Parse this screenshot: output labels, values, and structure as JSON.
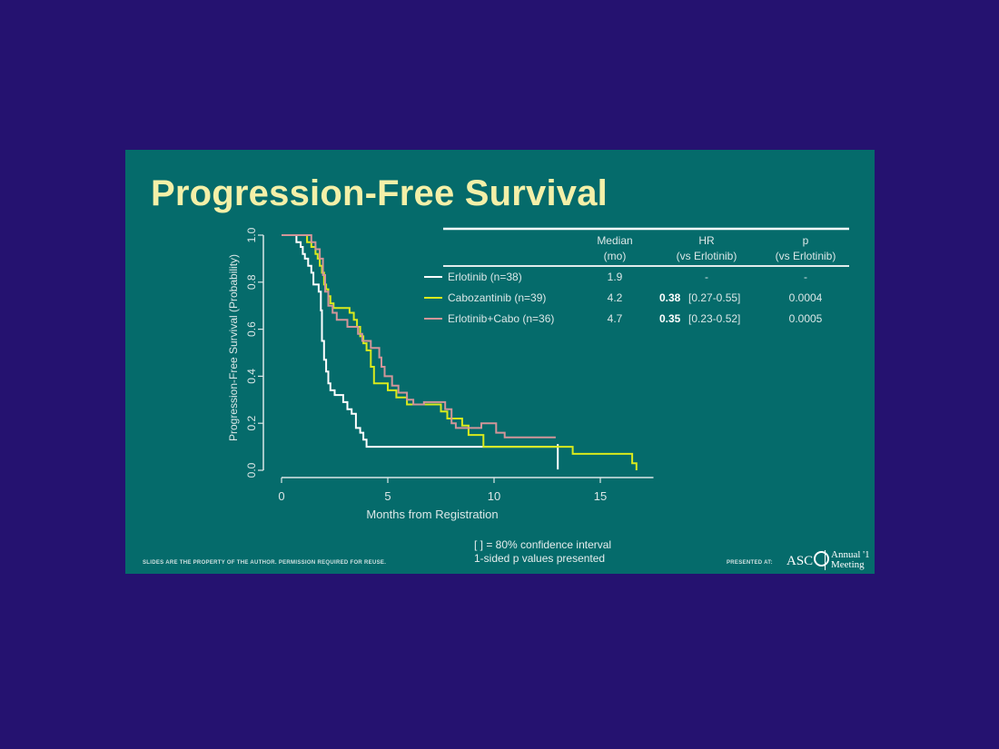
{
  "slide": {
    "title": "Progression-Free Survival",
    "footnote_line1": "[  ] = 80% confidence interval",
    "footnote_line2": "1-sided p values presented",
    "rights": "SLIDES ARE THE PROPERTY OF THE AUTHOR. PERMISSION REQUIRED FOR REUSE.",
    "presented_at": "PRESENTED AT:",
    "logo_text": "ASC",
    "meeting_line1": "Annual '1",
    "meeting_line2": "Meeting"
  },
  "table": {
    "headers": [
      {
        "line1": "Median",
        "line2": "(mo)"
      },
      {
        "line1": "HR",
        "line2": "(vs Erlotinib)"
      },
      {
        "line1": "p",
        "line2": "(vs Erlotinib)"
      }
    ],
    "rows": [
      {
        "label": "Erlotinib (n=38)",
        "median": "1.9",
        "hr_bold": "",
        "hr_ci": "-",
        "p": "-",
        "color": "#ffffff"
      },
      {
        "label": "Cabozantinib (n=39)",
        "median": "4.2",
        "hr_bold": "0.38",
        "hr_ci": "[0.27-0.55]",
        "p": "0.0004",
        "color": "#d9ea1c"
      },
      {
        "label": "Erlotinib+Cabo (n=36)",
        "median": "4.7",
        "hr_bold": "0.35",
        "hr_ci": "[0.23-0.52]",
        "p": "0.0005",
        "color": "#d29599"
      }
    ]
  },
  "chart_data": {
    "type": "line",
    "title": "Progression-Free Survival",
    "xlabel": "Months from Registration",
    "ylabel": "Progression-Free Survival (Probability)",
    "xlim": [
      0,
      17.5
    ],
    "ylim": [
      0,
      1.0
    ],
    "xticks": [
      0,
      5,
      10,
      15
    ],
    "yticks": [
      "0.0",
      "0.2",
      "0.4",
      "0.6",
      "0.8",
      "1.0"
    ],
    "grid": false,
    "series": [
      {
        "name": "Erlotinib (n=38)",
        "color": "#ffffff",
        "points": [
          [
            0,
            1.0
          ],
          [
            0.6,
            1.0
          ],
          [
            0.7,
            0.97
          ],
          [
            0.9,
            0.95
          ],
          [
            1.0,
            0.92
          ],
          [
            1.1,
            0.9
          ],
          [
            1.25,
            0.87
          ],
          [
            1.4,
            0.84
          ],
          [
            1.5,
            0.79
          ],
          [
            1.75,
            0.76
          ],
          [
            1.85,
            0.68
          ],
          [
            1.9,
            0.55
          ],
          [
            2.0,
            0.47
          ],
          [
            2.1,
            0.42
          ],
          [
            2.2,
            0.37
          ],
          [
            2.3,
            0.34
          ],
          [
            2.5,
            0.32
          ],
          [
            2.9,
            0.29
          ],
          [
            3.1,
            0.26
          ],
          [
            3.3,
            0.24
          ],
          [
            3.5,
            0.18
          ],
          [
            3.7,
            0.16
          ],
          [
            3.85,
            0.13
          ],
          [
            4.0,
            0.1
          ],
          [
            13.0,
            0.1
          ]
        ],
        "censor": [
          [
            13.0,
            0.1
          ]
        ]
      },
      {
        "name": "Cabozantinib (n=39)",
        "color": "#d9ea1c",
        "points": [
          [
            0,
            1.0
          ],
          [
            1.1,
            1.0
          ],
          [
            1.2,
            0.97
          ],
          [
            1.4,
            0.95
          ],
          [
            1.6,
            0.92
          ],
          [
            1.7,
            0.9
          ],
          [
            1.8,
            0.87
          ],
          [
            1.9,
            0.84
          ],
          [
            2.0,
            0.79
          ],
          [
            2.1,
            0.77
          ],
          [
            2.2,
            0.74
          ],
          [
            2.3,
            0.71
          ],
          [
            2.45,
            0.69
          ],
          [
            3.2,
            0.67
          ],
          [
            3.4,
            0.64
          ],
          [
            3.55,
            0.61
          ],
          [
            3.7,
            0.57
          ],
          [
            3.85,
            0.54
          ],
          [
            4.0,
            0.51
          ],
          [
            4.2,
            0.44
          ],
          [
            4.35,
            0.37
          ],
          [
            5.0,
            0.34
          ],
          [
            5.4,
            0.31
          ],
          [
            5.9,
            0.28
          ],
          [
            7.5,
            0.25
          ],
          [
            7.8,
            0.22
          ],
          [
            8.5,
            0.19
          ],
          [
            8.8,
            0.15
          ],
          [
            9.5,
            0.1
          ],
          [
            13.1,
            0.1
          ],
          [
            13.7,
            0.07
          ],
          [
            16.2,
            0.07
          ],
          [
            16.5,
            0.03
          ],
          [
            16.7,
            0.0
          ]
        ]
      },
      {
        "name": "Erlotinib+Cabo (n=36)",
        "color": "#d29599",
        "points": [
          [
            0,
            1.0
          ],
          [
            1.3,
            1.0
          ],
          [
            1.4,
            0.97
          ],
          [
            1.6,
            0.94
          ],
          [
            1.8,
            0.9
          ],
          [
            1.95,
            0.83
          ],
          [
            2.05,
            0.76
          ],
          [
            2.2,
            0.7
          ],
          [
            2.4,
            0.67
          ],
          [
            2.6,
            0.64
          ],
          [
            3.1,
            0.61
          ],
          [
            3.6,
            0.58
          ],
          [
            3.8,
            0.55
          ],
          [
            4.2,
            0.52
          ],
          [
            4.6,
            0.48
          ],
          [
            4.7,
            0.44
          ],
          [
            4.85,
            0.4
          ],
          [
            5.2,
            0.36
          ],
          [
            5.5,
            0.33
          ],
          [
            5.9,
            0.3
          ],
          [
            6.2,
            0.28
          ],
          [
            6.7,
            0.29
          ],
          [
            7.7,
            0.26
          ],
          [
            8.0,
            0.2
          ],
          [
            8.2,
            0.18
          ],
          [
            9.4,
            0.2
          ],
          [
            10.1,
            0.16
          ],
          [
            10.5,
            0.14
          ],
          [
            12.9,
            0.14
          ]
        ]
      }
    ]
  }
}
